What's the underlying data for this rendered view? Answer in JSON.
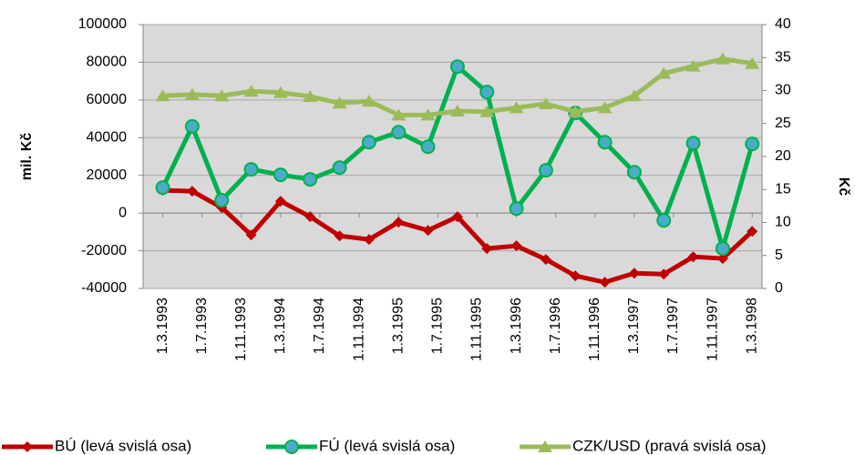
{
  "chart_data": {
    "type": "line",
    "x": [
      "1.3.1993",
      "1.6.1993",
      "1.9.1993",
      "1.12.1993",
      "1.3.1994",
      "1.6.1994",
      "1.9.1994",
      "1.12.1994",
      "1.3.1995",
      "1.6.1995",
      "1.9.1995",
      "1.12.1995",
      "1.3.1996",
      "1.6.1996",
      "1.9.1996",
      "1.12.1996",
      "1.3.1997",
      "1.6.1997",
      "1.9.1997",
      "1.12.1997",
      "1.3.1998"
    ],
    "xlim": [
      "1.1.1993",
      "1.4.1998"
    ],
    "xticks": [
      "1.3.1993",
      "1.7.1993",
      "1.11.1993",
      "1.3.1994",
      "1.7.1994",
      "1.11.1994",
      "1.3.1995",
      "1.7.1995",
      "1.11.1995",
      "1.3.1996",
      "1.7.1996",
      "1.11.1996",
      "1.3.1997",
      "1.7.1997",
      "1.11.1997",
      "1.3.1998"
    ],
    "ylim": [
      -40000,
      100000
    ],
    "yticks": [
      -40000,
      -20000,
      0,
      20000,
      40000,
      60000,
      80000,
      100000
    ],
    "y2lim": [
      0,
      40
    ],
    "y2ticks": [
      0,
      5,
      10,
      15,
      20,
      25,
      30,
      35,
      40
    ],
    "ylabel": "mil. Kč",
    "y2label": "Kč",
    "grid": true,
    "legend": "bottom",
    "series": [
      {
        "name": "BÚ (levá svislá osa)",
        "color": "#c00000",
        "marker": "diamond",
        "values": [
          12100,
          11600,
          2900,
          -11600,
          6300,
          -1900,
          -12100,
          -14000,
          -4800,
          -9200,
          -1900,
          -18800,
          -17400,
          -24600,
          -33300,
          -36700,
          -31900,
          -32400,
          -23200,
          -24100,
          -9700
        ]
      },
      {
        "name": "FÚ (levá svislá osa)",
        "color": "#00b050",
        "marker": "circle",
        "values": [
          13500,
          46000,
          6800,
          23200,
          20300,
          17900,
          24100,
          37600,
          42900,
          35200,
          77700,
          64200,
          2400,
          22700,
          53100,
          37600,
          21700,
          -3900,
          37100,
          -18800,
          36700
        ]
      },
      {
        "name": "CZK/USD (pravá svislá osa)",
        "color": "#9bbb59",
        "marker": "triangle",
        "axis": "y2",
        "values": [
          29.2,
          29.4,
          29.2,
          29.9,
          29.7,
          29.1,
          28.1,
          28.4,
          26.3,
          26.3,
          26.9,
          26.8,
          27.4,
          28.0,
          26.8,
          27.4,
          29.2,
          32.6,
          33.7,
          34.8,
          34.1
        ]
      }
    ]
  }
}
